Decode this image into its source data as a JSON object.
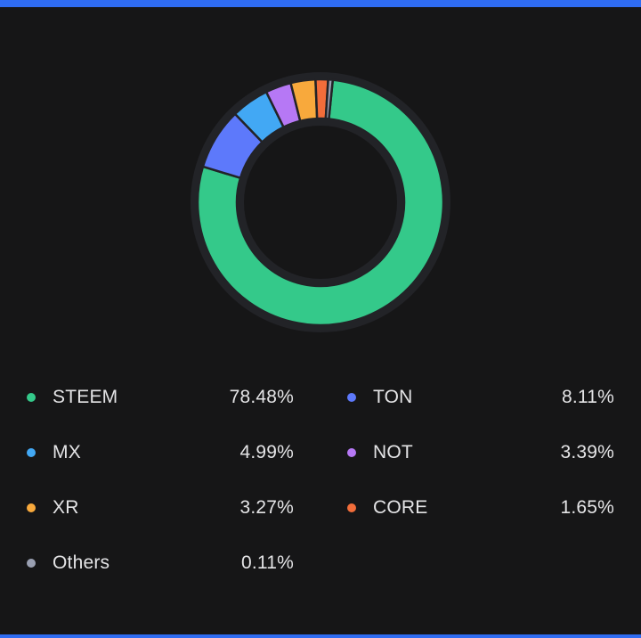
{
  "chart_data": {
    "type": "pie",
    "donut": true,
    "categories": [
      "STEEM",
      "TON",
      "MX",
      "NOT",
      "XR",
      "CORE",
      "Others"
    ],
    "values": [
      78.48,
      8.11,
      4.99,
      3.39,
      3.27,
      1.65,
      0.11
    ],
    "labels": [
      "78.48%",
      "8.11%",
      "4.99%",
      "3.39%",
      "3.27%",
      "1.65%",
      "0.11%"
    ],
    "colors": [
      "#34c98a",
      "#5d79fb",
      "#42a8f4",
      "#b678f5",
      "#f8a93c",
      "#f26d3a",
      "#9aa0b2"
    ],
    "title": "",
    "legend_position": "bottom"
  }
}
